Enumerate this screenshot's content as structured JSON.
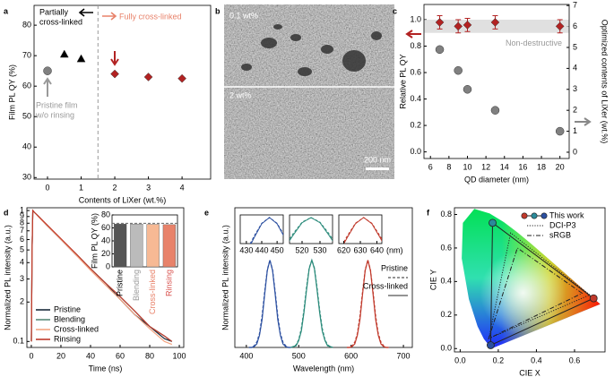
{
  "chart_data": [
    {
      "panel": "a",
      "type": "scatter",
      "ylabel": "Film PL QY (%)",
      "xlabel": "Contents of LiXer (wt.%)",
      "xlim": [
        -0.4,
        4.85
      ],
      "xticks": [
        0,
        1,
        2,
        3,
        4
      ],
      "ylim": [
        29.5,
        86.5
      ],
      "yticks": [
        30,
        40,
        50,
        60,
        70,
        80
      ],
      "divider_x": 1.5,
      "partial_label": [
        "Partially",
        "cross-linked"
      ],
      "partial_color": "#000000",
      "full_label": "Fully cross-linked",
      "full_color": "#e8826a",
      "pristine_label": [
        "Pristine film",
        "w/o rinsing"
      ],
      "pristine_color": "#999999",
      "series": [
        {
          "marker": "circle",
          "color": "#808080",
          "x": [
            0
          ],
          "values": [
            65
          ]
        },
        {
          "marker": "triangle",
          "color": "#000000",
          "x": [
            0.5,
            1
          ],
          "values": [
            70.5,
            69
          ]
        },
        {
          "marker": "diamond",
          "color": "#b22222",
          "x": [
            2,
            3,
            4
          ],
          "values": [
            64,
            63,
            62.5
          ]
        }
      ]
    },
    {
      "panel": "b",
      "type": "image",
      "top_label": "0.1 wt%",
      "bottom_label": "2 wt%",
      "scale_label": "200 nm"
    },
    {
      "panel": "c",
      "type": "scatter",
      "xlabel": "QD diameter (nm)",
      "ylabel": "Relative PL QY",
      "y2label": "Optimized contents of LiXer (wt.%)",
      "xlim": [
        5.3,
        21
      ],
      "xticks": [
        6,
        8,
        10,
        12,
        14,
        16,
        18,
        20
      ],
      "ylim": [
        -0.05,
        1.115
      ],
      "yticks": [
        {
          "value": 0,
          "label": "0.0"
        },
        0.2,
        0.4,
        0.6,
        0.8,
        {
          "value": 1,
          "label": "1.0"
        }
      ],
      "y2lim": [
        -0.3,
        7.05
      ],
      "y2ticks": [
        0,
        1,
        2,
        3,
        4,
        5,
        6,
        7
      ],
      "band": [
        0.9,
        1.0
      ],
      "band_label": "Non-destructive",
      "series": [
        {
          "marker": "diamond",
          "color": "#b22222",
          "x": [
            7,
            9,
            10,
            13,
            20
          ],
          "values": [
            0.98,
            0.95,
            0.96,
            0.98,
            0.95
          ],
          "errors": [
            0.05,
            0.05,
            0.05,
            0.05,
            0.05
          ]
        },
        {
          "marker": "circle",
          "color": "#808080",
          "axis": "y2",
          "x": [
            7,
            9,
            10,
            13,
            20
          ],
          "values": [
            4.9,
            3.9,
            3.0,
            2.0,
            1.0
          ]
        }
      ]
    },
    {
      "panel": "d",
      "type": "line",
      "log_y": true,
      "xlabel": "Time (ns)",
      "ylabel": "Normalized PL intensity (a.u.)",
      "xlim": [
        -3,
        103
      ],
      "xticks": [
        0,
        20,
        40,
        60,
        80,
        100
      ],
      "ylim": [
        0.09,
        1.05
      ],
      "yticks": [
        0.1,
        {
          "value": 0.2,
          "label": "2"
        },
        {
          "value": 0.3,
          "label": "3"
        },
        {
          "value": 0.4,
          "label": "4"
        },
        {
          "value": 0.5,
          "label": "5"
        },
        {
          "value": 0.6,
          "label": "6"
        },
        {
          "value": 0.7,
          "label": "7"
        },
        {
          "value": 0.8,
          "label": "8"
        },
        {
          "value": 0.9,
          "label": "9"
        },
        1
      ],
      "x": [
        0,
        0.5,
        1,
        2,
        5,
        10,
        20,
        30,
        40,
        50,
        60,
        70,
        80,
        90,
        95
      ],
      "series": [
        {
          "name": "Pristine",
          "color": "#1a2a3a",
          "values": [
            0.1,
            0.5,
            1,
            0.97,
            0.9,
            0.78,
            0.6,
            0.46,
            0.36,
            0.28,
            0.21,
            0.16,
            0.13,
            0.105,
            0.1
          ]
        },
        {
          "name": "Blending",
          "color": "#5a8a7a",
          "values": [
            0.1,
            0.5,
            1,
            0.97,
            0.9,
            0.78,
            0.6,
            0.47,
            0.36,
            0.28,
            0.22,
            0.17,
            0.13,
            0.11,
            0.1
          ]
        },
        {
          "name": "Cross-linked",
          "color": "#f4a582",
          "values": [
            0.1,
            0.5,
            1,
            0.97,
            0.89,
            0.78,
            0.6,
            0.46,
            0.35,
            0.27,
            0.21,
            0.16,
            0.125,
            0.1,
            0.095
          ]
        },
        {
          "name": "Rinsing",
          "color": "#c0392b",
          "values": [
            0.1,
            0.5,
            1,
            0.97,
            0.9,
            0.79,
            0.61,
            0.47,
            0.36,
            0.28,
            0.22,
            0.17,
            0.13,
            0.11,
            0.1
          ]
        }
      ],
      "inset": {
        "type": "bar",
        "ylabel": "Film PL QY (%)",
        "categories": [
          "Pristine",
          "Blending",
          "Cross-linked",
          "Rinsing"
        ],
        "values": [
          66,
          66,
          65.5,
          65
        ],
        "colors": [
          "#555555",
          "#bbbbbb",
          "#f7b994",
          "#e8826a"
        ],
        "label_colors": [
          "#000000",
          "#999999",
          "#e8826a",
          "#d9534f"
        ],
        "ylim": [
          0,
          80
        ],
        "yticks": [
          0,
          20,
          40,
          60,
          80
        ],
        "reference_line": 67
      }
    },
    {
      "panel": "e",
      "type": "line",
      "xlabel": "Wavelength (nm)",
      "ylabel": "Normalized PL intensity (a.u.)",
      "xlim": [
        378,
        717
      ],
      "xticks": [
        400,
        500,
        600,
        700
      ],
      "ylim": [
        0,
        1.6
      ],
      "series": [
        {
          "color": "#2b4fa0",
          "style": "solid",
          "x": [
            405,
            410,
            415,
            420,
            425,
            430,
            435,
            440,
            445,
            450,
            455,
            460,
            465,
            470,
            475,
            480,
            485
          ],
          "values": [
            0,
            0,
            0.01,
            0.04,
            0.14,
            0.32,
            0.61,
            0.88,
            1,
            0.88,
            0.61,
            0.32,
            0.14,
            0.04,
            0.01,
            0,
            0
          ]
        },
        {
          "color": "#2b4fa0",
          "style": "dashed",
          "x": [
            405,
            410,
            415,
            420,
            425,
            430,
            435,
            440,
            445,
            450,
            455,
            460,
            465,
            470,
            475,
            480,
            485
          ],
          "values": [
            0,
            0,
            0.02,
            0.06,
            0.16,
            0.36,
            0.64,
            0.89,
            1,
            0.89,
            0.64,
            0.36,
            0.16,
            0.06,
            0.02,
            0,
            0
          ]
        },
        {
          "color": "#2a8a7a",
          "style": "solid",
          "x": [
            485,
            490,
            495,
            500,
            505,
            510,
            515,
            520,
            525,
            530,
            535,
            540,
            545,
            550,
            555,
            560,
            565
          ],
          "values": [
            0,
            0.01,
            0.02,
            0.08,
            0.19,
            0.4,
            0.66,
            0.9,
            1,
            0.9,
            0.66,
            0.4,
            0.19,
            0.08,
            0.02,
            0.01,
            0
          ]
        },
        {
          "color": "#2a8a7a",
          "style": "dashed",
          "x": [
            485,
            490,
            495,
            500,
            505,
            510,
            515,
            520,
            525,
            530,
            535,
            540,
            545,
            550,
            555,
            560,
            565
          ],
          "values": [
            0,
            0.01,
            0.03,
            0.09,
            0.22,
            0.43,
            0.69,
            0.91,
            1,
            0.91,
            0.69,
            0.43,
            0.22,
            0.09,
            0.03,
            0.01,
            0
          ]
        },
        {
          "color": "#c0392b",
          "style": "solid",
          "x": [
            592,
            597,
            602,
            607,
            612,
            617,
            622,
            627,
            632,
            637,
            642,
            647,
            652,
            657,
            662,
            667,
            672
          ],
          "values": [
            0,
            0,
            0.01,
            0.04,
            0.14,
            0.32,
            0.61,
            0.88,
            1,
            0.88,
            0.61,
            0.32,
            0.14,
            0.04,
            0.01,
            0,
            0
          ]
        },
        {
          "color": "#c0392b",
          "style": "dashed",
          "x": [
            592,
            597,
            602,
            607,
            612,
            617,
            622,
            627,
            632,
            637,
            642,
            647,
            652,
            657,
            662,
            667,
            672
          ],
          "values": [
            0,
            0,
            0.02,
            0.06,
            0.16,
            0.36,
            0.64,
            0.89,
            1,
            0.89,
            0.64,
            0.36,
            0.16,
            0.06,
            0.02,
            0,
            0
          ]
        }
      ],
      "legend": [
        {
          "name": "Pristine",
          "style": "dashed"
        },
        {
          "name": "Cross-linked",
          "style": "solid"
        }
      ],
      "inset_ylim": [
        0.5,
        1.05
      ],
      "inset_unit": "(nm)",
      "insets": [
        {
          "xlim": [
            426,
            454
          ],
          "xticks": [
            430,
            440,
            450
          ]
        },
        {
          "xlim": [
            513,
            537
          ],
          "xticks": [
            520,
            530
          ]
        },
        {
          "xlim": [
            617,
            643
          ],
          "xticks": [
            620,
            630,
            640
          ]
        }
      ]
    },
    {
      "panel": "f",
      "type": "cie",
      "xlabel": "CIE X",
      "ylabel": "CIE Y",
      "xlim": [
        -0.03,
        0.76
      ],
      "xticks": [
        {
          "value": 0,
          "label": "0.0"
        },
        0.2,
        0.4,
        0.6
      ],
      "ylim": [
        -0.02,
        0.84
      ],
      "yticks": [
        {
          "value": 0,
          "label": "0.0"
        },
        0.2,
        0.4,
        0.6,
        0.8
      ],
      "series": [
        {
          "name": "This work",
          "style": "solid",
          "point_colors": [
            "#c0392b",
            "#2a8a9a",
            "#2b4fa0"
          ],
          "x": [
            0.7,
            0.17,
            0.16
          ],
          "values": [
            0.3,
            0.75,
            0.02
          ]
        },
        {
          "name": "DCI-P3",
          "style": "dotted",
          "x": [
            0.68,
            0.265,
            0.15
          ],
          "values": [
            0.32,
            0.69,
            0.06
          ]
        },
        {
          "name": "sRGB",
          "style": "dashdot",
          "x": [
            0.64,
            0.3,
            0.15
          ],
          "values": [
            0.33,
            0.6,
            0.06
          ]
        }
      ]
    }
  ]
}
